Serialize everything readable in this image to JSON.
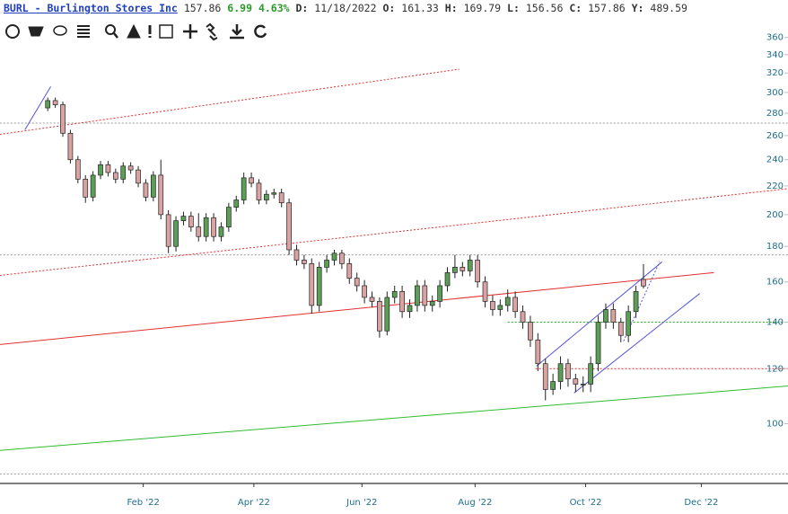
{
  "header": {
    "symbol": "BURL - Burlington Stores Inc",
    "last": "157.86",
    "change": "6.99",
    "change_pct": "4.63%",
    "fields": [
      {
        "label": "D:",
        "value": "11/18/2022"
      },
      {
        "label": "O:",
        "value": "161.33"
      },
      {
        "label": "H:",
        "value": "169.79"
      },
      {
        "label": "L:",
        "value": "156.56"
      },
      {
        "label": "C:",
        "value": "157.86"
      },
      {
        "label": "Y:",
        "value": "489.59"
      }
    ]
  },
  "chart_data": {
    "type": "candlestick",
    "log_scale": true,
    "x": [
      2,
      5,
      8,
      11,
      14,
      17,
      20,
      23,
      26,
      29,
      32,
      35,
      38,
      41,
      44,
      47,
      50,
      53,
      56,
      59,
      62,
      65,
      68,
      71,
      74,
      77,
      80,
      83,
      86,
      89,
      92,
      95,
      98,
      101,
      104,
      107,
      110,
      113,
      116,
      119,
      122,
      125,
      128,
      131,
      134,
      137,
      140,
      143,
      146,
      149,
      152,
      155,
      158,
      161,
      164,
      167,
      170,
      173,
      176,
      179,
      182,
      185,
      188,
      191,
      194,
      197,
      200,
      203,
      206,
      209,
      212,
      215,
      218,
      221,
      224,
      227,
      230,
      233,
      236,
      239
    ],
    "open": [
      285,
      292,
      288,
      262,
      240,
      225,
      212,
      228,
      236,
      230,
      225,
      235,
      232,
      222,
      212,
      228,
      200,
      180,
      196,
      199,
      192,
      186,
      198,
      186,
      192,
      205,
      210,
      226,
      222,
      210,
      214,
      215,
      208,
      178,
      172,
      170,
      148,
      168,
      172,
      176,
      170,
      162,
      158,
      152,
      150,
      136,
      152,
      155,
      145,
      148,
      158,
      148,
      150,
      158,
      165,
      168,
      166,
      172,
      160,
      150,
      146,
      148,
      152,
      145,
      140,
      132,
      122,
      112,
      115,
      122,
      116,
      114,
      114,
      122,
      140,
      146,
      140,
      134,
      145,
      161.33
    ],
    "high": [
      295,
      295,
      291,
      265,
      243,
      228,
      231,
      239,
      239,
      233,
      238,
      238,
      235,
      225,
      231,
      240,
      203,
      199,
      202,
      202,
      201,
      201,
      201,
      195,
      208,
      213,
      230,
      230,
      225,
      217,
      218,
      218,
      211,
      181,
      175,
      173,
      171,
      175,
      178,
      178,
      173,
      165,
      161,
      155,
      152,
      155,
      158,
      158,
      151,
      161,
      161,
      153,
      161,
      168,
      175,
      171,
      175,
      175,
      163,
      153,
      151,
      156,
      155,
      148,
      143,
      135,
      124,
      118,
      125,
      124,
      118,
      117,
      125,
      143,
      149,
      149,
      142,
      148,
      158,
      169.79
    ],
    "low": [
      282,
      285,
      259,
      237,
      222,
      208,
      209,
      225,
      227,
      222,
      222,
      229,
      219,
      209,
      209,
      197,
      176,
      177,
      193,
      189,
      183,
      183,
      183,
      183,
      189,
      202,
      207,
      219,
      207,
      207,
      211,
      205,
      175,
      169,
      167,
      144,
      145,
      165,
      169,
      167,
      159,
      155,
      149,
      147,
      133,
      134,
      149,
      142,
      142,
      145,
      145,
      145,
      147,
      155,
      162,
      163,
      163,
      157,
      147,
      143,
      143,
      145,
      142,
      137,
      129,
      119,
      108,
      110,
      112,
      113,
      111,
      111,
      111,
      119,
      137,
      137,
      131,
      131,
      142,
      156.56
    ],
    "close": [
      292,
      288,
      262,
      240,
      225,
      212,
      228,
      236,
      230,
      225,
      235,
      232,
      222,
      212,
      228,
      200,
      180,
      196,
      199,
      192,
      186,
      198,
      186,
      192,
      205,
      210,
      226,
      222,
      210,
      214,
      215,
      208,
      178,
      172,
      170,
      148,
      168,
      172,
      176,
      170,
      162,
      158,
      152,
      150,
      136,
      152,
      155,
      145,
      148,
      158,
      148,
      150,
      158,
      165,
      168,
      166,
      172,
      160,
      150,
      146,
      148,
      152,
      145,
      140,
      132,
      122,
      112,
      115,
      122,
      116,
      114,
      114,
      122,
      140,
      146,
      140,
      134,
      145,
      155,
      157.86
    ],
    "up_color": "#5c9e57",
    "down_color": "#d9a3a3",
    "outline_color": "#222222",
    "xlim": [
      -17,
      296.5
    ],
    "ylim": [
      82,
      375
    ],
    "xticks": [
      {
        "value": 40,
        "label": "Feb '22"
      },
      {
        "value": 84,
        "label": "Apr '22"
      },
      {
        "value": 127,
        "label": "Jun '22"
      },
      {
        "value": 172,
        "label": "Aug '22"
      },
      {
        "value": 216,
        "label": "Oct '22"
      },
      {
        "value": 262,
        "label": "Dec '22"
      }
    ],
    "yticks": [
      100,
      120,
      140,
      160,
      180,
      200,
      220,
      240,
      260,
      280,
      300,
      320,
      340,
      360
    ],
    "drawings": [
      {
        "x": [
          -17.1,
          165.7
        ],
        "y": [
          261,
          324
        ],
        "color": "#e03030",
        "dash": true
      },
      {
        "x": [
          -17.1,
          296.5
        ],
        "y": [
          163.5,
          218
        ],
        "color": "#e03030",
        "dash": true
      },
      {
        "x": [
          -17.1,
          267
        ],
        "y": [
          130,
          165
        ],
        "color": "#e03030",
        "dash": false
      },
      {
        "x": [
          -17.1,
          296.5
        ],
        "y": [
          91.5,
          113.3
        ],
        "color": "#33bb33",
        "dash": false
      },
      {
        "x": [
          196.4,
          246.4
        ],
        "y": [
          121,
          171
        ],
        "color": "#5555dd",
        "dash": false
      },
      {
        "x": [
          211.4,
          261.4
        ],
        "y": [
          110.7,
          154
        ],
        "color": "#5555dd",
        "dash": false
      },
      {
        "x": [
          -7.1,
          3.2
        ],
        "y": [
          265,
          306
        ],
        "color": "#5555dd",
        "dash": false
      },
      {
        "x": [
          231.1,
          245.4
        ],
        "y": [
          131.5,
          171
        ],
        "color": "#5555dd",
        "dash": true
      }
    ],
    "hlines": [
      {
        "y": 271,
        "from": -17.1,
        "color": "#999999"
      },
      {
        "y": 175,
        "from": -17.1,
        "color": "#999999"
      },
      {
        "y": 84.6,
        "from": -17.1,
        "color": "#999999"
      },
      {
        "y": 140,
        "from": 185,
        "color": "#33aa33"
      },
      {
        "y": 120,
        "from": 196,
        "color": "#cc3333"
      }
    ]
  }
}
